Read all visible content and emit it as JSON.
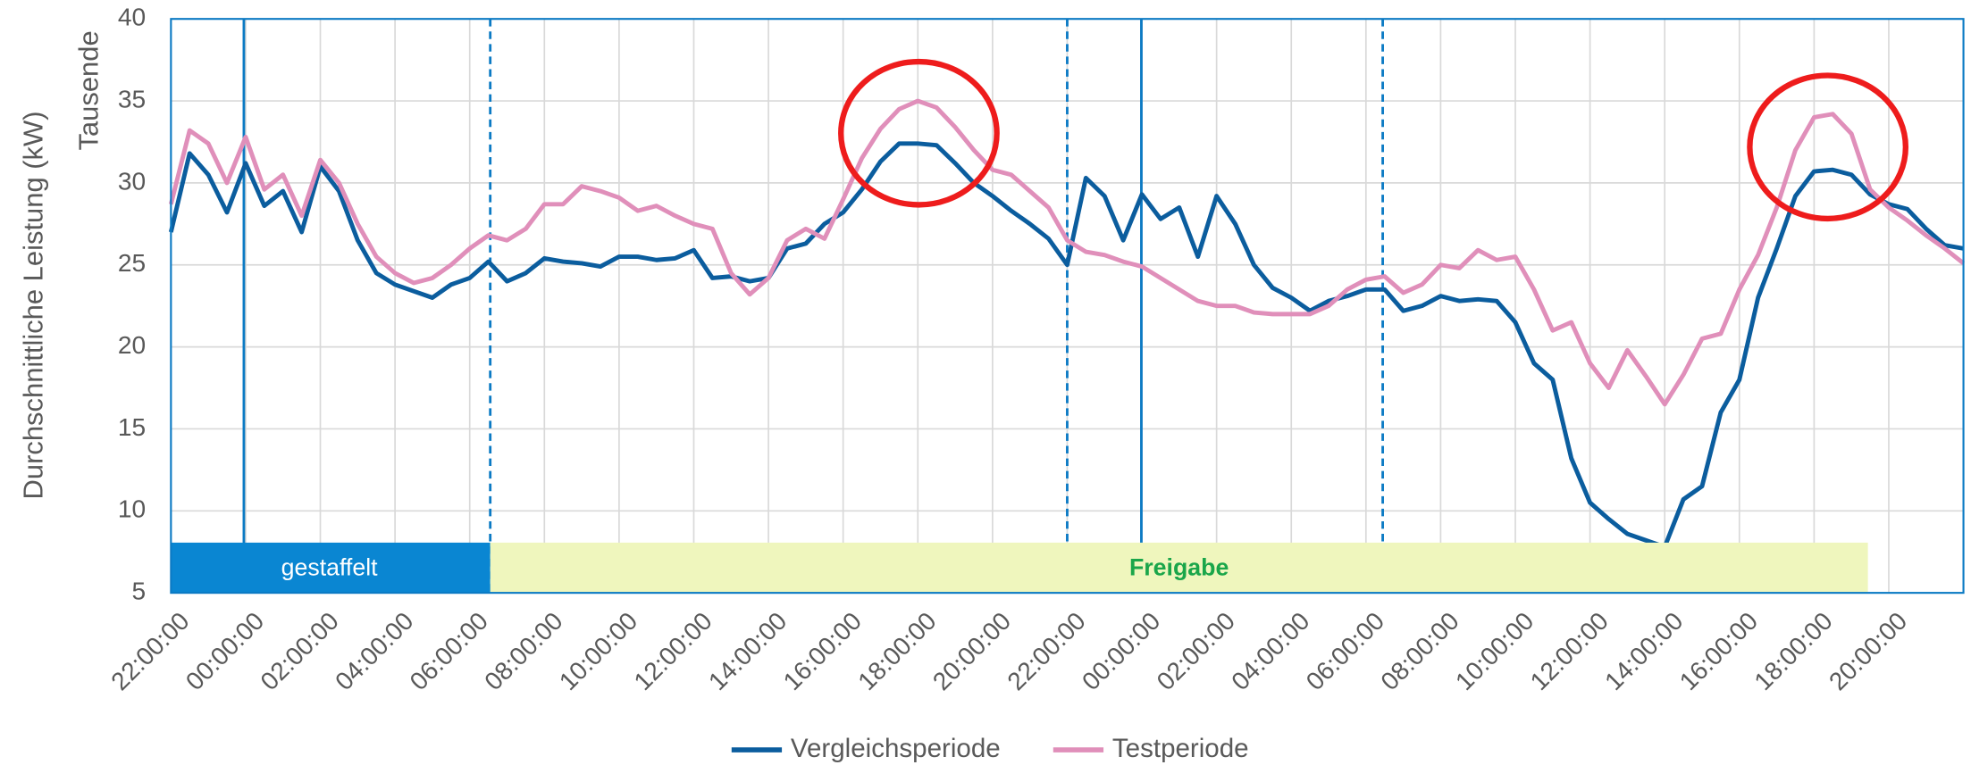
{
  "chart_data": {
    "type": "line",
    "y_axis_label": "Durchschnittliche Leistung (kW)",
    "y_axis_unit": "Tausende",
    "annotations": [
      "gestaffelt",
      "Freigabe"
    ],
    "x": [
      0,
      0.5,
      1,
      1.5,
      2,
      2.5,
      3,
      3.5,
      4,
      4.5,
      5,
      5.5,
      6,
      6.5,
      7,
      7.5,
      8,
      8.5,
      9,
      9.5,
      10,
      10.5,
      11,
      11.5,
      12,
      12.5,
      13,
      13.5,
      14,
      14.5,
      15,
      15.5,
      16,
      16.5,
      17,
      17.5,
      18,
      18.5,
      19,
      19.5,
      20,
      20.5,
      21,
      21.5,
      22,
      22.5,
      23,
      23.5,
      24,
      24.5,
      25,
      25.5,
      26,
      26.5,
      27,
      27.5,
      28,
      28.5,
      29,
      29.5,
      30,
      30.5,
      31,
      31.5,
      32,
      32.5,
      33,
      33.5,
      34,
      34.5,
      35,
      35.5,
      36,
      36.5,
      37,
      37.5,
      38,
      38.5,
      39,
      39.5,
      40,
      40.5,
      41,
      41.5,
      42,
      42.5,
      43,
      43.5,
      44,
      44.5,
      45,
      45.5,
      46,
      46.5,
      47,
      47.5,
      48
    ],
    "xlim": [
      0,
      48
    ],
    "xticks": [
      {
        "value": 0,
        "label": "22:00:00"
      },
      {
        "value": 2,
        "label": "00:00:00"
      },
      {
        "value": 4,
        "label": "02:00:00"
      },
      {
        "value": 6,
        "label": "04:00:00"
      },
      {
        "value": 8,
        "label": "06:00:00"
      },
      {
        "value": 10,
        "label": "08:00:00"
      },
      {
        "value": 12,
        "label": "10:00:00"
      },
      {
        "value": 14,
        "label": "12:00:00"
      },
      {
        "value": 16,
        "label": "14:00:00"
      },
      {
        "value": 18,
        "label": "16:00:00"
      },
      {
        "value": 20,
        "label": "18:00:00"
      },
      {
        "value": 22,
        "label": "20:00:00"
      },
      {
        "value": 24,
        "label": "22:00:00"
      },
      {
        "value": 26,
        "label": "00:00:00"
      },
      {
        "value": 28,
        "label": "02:00:00"
      },
      {
        "value": 30,
        "label": "04:00:00"
      },
      {
        "value": 32,
        "label": "06:00:00"
      },
      {
        "value": 34,
        "label": "08:00:00"
      },
      {
        "value": 36,
        "label": "10:00:00"
      },
      {
        "value": 38,
        "label": "12:00:00"
      },
      {
        "value": 40,
        "label": "14:00:00"
      },
      {
        "value": 42,
        "label": "16:00:00"
      },
      {
        "value": 44,
        "label": "18:00:00"
      },
      {
        "value": 46,
        "label": "20:00:00"
      }
    ],
    "ylim": [
      5,
      40
    ],
    "yticks": [
      5,
      10,
      15,
      20,
      25,
      30,
      35,
      40
    ],
    "grid": true,
    "legend": "bottom",
    "series": [
      {
        "name": "Vergleichsperiode",
        "color": "#0b5d9e",
        "values": [
          27,
          31.8,
          30.5,
          28.2,
          31.2,
          28.6,
          29.5,
          27,
          31,
          29.5,
          26.5,
          24.5,
          23.8,
          23.4,
          23,
          23.8,
          24.2,
          25.2,
          24,
          24.5,
          25.4,
          25.2,
          25.1,
          24.9,
          25.5,
          25.5,
          25.3,
          25.4,
          25.9,
          24.2,
          24.3,
          24,
          24.2,
          26,
          26.3,
          27.5,
          28.2,
          29.6,
          31.3,
          32.4,
          32.4,
          32.3,
          31.2,
          30,
          29.2,
          28.3,
          27.5,
          26.6,
          25,
          30.3,
          29.2,
          26.5,
          29.3,
          27.8,
          28.5,
          25.5,
          29.2,
          27.5,
          25,
          23.6,
          23,
          22.2,
          22.8,
          23.1,
          23.5,
          23.5,
          22.2,
          22.5,
          23.1,
          22.8,
          22.9,
          22.8,
          21.5,
          19,
          18,
          13.2,
          10.5,
          9.5,
          8.6,
          8.2,
          7.8,
          10.7,
          11.5,
          16,
          18,
          23,
          26,
          29.2,
          30.7,
          30.8,
          30.5,
          29.3,
          28.7,
          28.4,
          27.2,
          26.2,
          26
        ]
      },
      {
        "name": "Testperiode",
        "color": "#e08fba",
        "values": [
          28.7,
          33.2,
          32.4,
          30,
          32.8,
          29.6,
          30.5,
          28,
          31.4,
          30,
          27.5,
          25.5,
          24.5,
          23.9,
          24.2,
          25,
          26,
          26.8,
          26.5,
          27.2,
          28.7,
          28.7,
          29.8,
          29.5,
          29.1,
          28.3,
          28.6,
          28,
          27.5,
          27.2,
          24.5,
          23.2,
          24.2,
          26.5,
          27.2,
          26.6,
          29,
          31.5,
          33.3,
          34.5,
          35,
          34.6,
          33.4,
          32,
          30.8,
          30.5,
          29.5,
          28.5,
          26.5,
          25.8,
          25.6,
          25.2,
          24.9,
          24.2,
          23.5,
          22.8,
          22.5,
          22.5,
          22.1,
          22,
          22,
          22,
          22.5,
          23.5,
          24.1,
          24.3,
          23.3,
          23.8,
          25,
          24.8,
          25.9,
          25.3,
          25.5,
          23.5,
          21,
          21.5,
          19,
          17.5,
          19.8,
          18.2,
          16.5,
          18.3,
          20.5,
          20.8,
          23.5,
          25.6,
          28.5,
          32,
          34,
          34.2,
          33,
          29.6,
          28.5,
          27.7,
          26.8,
          26,
          25.1
        ]
      }
    ]
  }
}
